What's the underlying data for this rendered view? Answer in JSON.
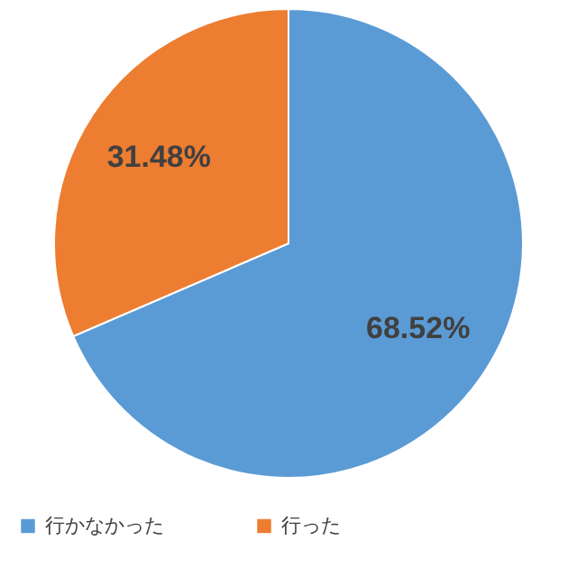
{
  "chart_data": {
    "type": "pie",
    "categories": [
      "行かなかった",
      "行った"
    ],
    "values": [
      68.52,
      31.48
    ],
    "colors": [
      "#5b9bd5",
      "#ed7d31"
    ],
    "value_labels": [
      "68.52%",
      "31.48%"
    ],
    "legend": "bottom"
  }
}
